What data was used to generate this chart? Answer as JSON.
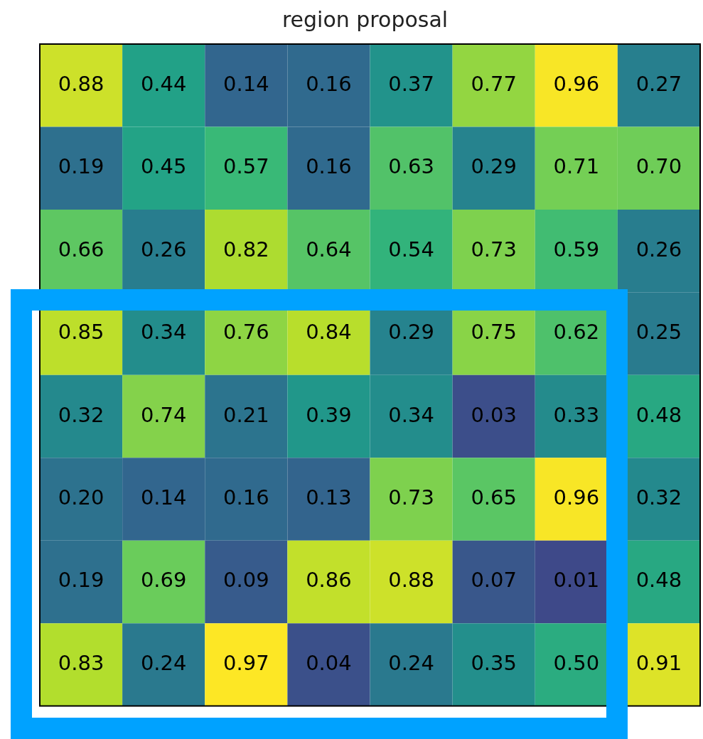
{
  "chart_data": {
    "type": "heatmap",
    "title": "region proposal",
    "categories": [
      null,
      null,
      null,
      null,
      null,
      null,
      null,
      null
    ],
    "y_categories": [
      null,
      null,
      null,
      null,
      null,
      null,
      null,
      null
    ],
    "cells": [
      [
        0.88,
        0.44,
        0.14,
        0.16,
        0.37,
        0.77,
        0.96,
        0.27
      ],
      [
        0.19,
        0.45,
        0.57,
        0.16,
        0.63,
        0.29,
        0.71,
        0.7
      ],
      [
        0.66,
        0.26,
        0.82,
        0.64,
        0.54,
        0.73,
        0.59,
        0.26
      ],
      [
        0.85,
        0.34,
        0.76,
        0.84,
        0.29,
        0.75,
        0.62,
        0.25
      ],
      [
        0.32,
        0.74,
        0.21,
        0.39,
        0.34,
        0.03,
        0.33,
        0.48
      ],
      [
        0.2,
        0.14,
        0.16,
        0.13,
        0.73,
        0.65,
        0.96,
        0.32
      ],
      [
        0.19,
        0.69,
        0.09,
        0.86,
        0.88,
        0.07,
        0.01,
        0.48
      ],
      [
        0.83,
        0.24,
        0.97,
        0.04,
        0.24,
        0.35,
        0.5,
        0.91
      ]
    ],
    "cell_labels": [
      [
        "0.88",
        "0.44",
        "0.14",
        "0.16",
        "0.37",
        "0.77",
        "0.96",
        "0.27"
      ],
      [
        "0.19",
        "0.45",
        "0.57",
        "0.16",
        "0.63",
        "0.29",
        "0.71",
        "0.70"
      ],
      [
        "0.66",
        "0.26",
        "0.82",
        "0.64",
        "0.54",
        "0.73",
        "0.59",
        "0.26"
      ],
      [
        "0.85",
        "0.34",
        "0.76",
        "0.84",
        "0.29",
        "0.75",
        "0.62",
        "0.25"
      ],
      [
        "0.32",
        "0.74",
        "0.21",
        "0.39",
        "0.34",
        "0.03",
        "0.33",
        "0.48"
      ],
      [
        "0.20",
        "0.14",
        "0.16",
        "0.13",
        "0.73",
        "0.65",
        "0.96",
        "0.32"
      ],
      [
        "0.19",
        "0.69",
        "0.09",
        "0.86",
        "0.88",
        "0.07",
        "0.01",
        "0.48"
      ],
      [
        "0.83",
        "0.24",
        "0.97",
        "0.04",
        "0.24",
        "0.35",
        "0.50",
        "0.91"
      ]
    ]
  }
}
